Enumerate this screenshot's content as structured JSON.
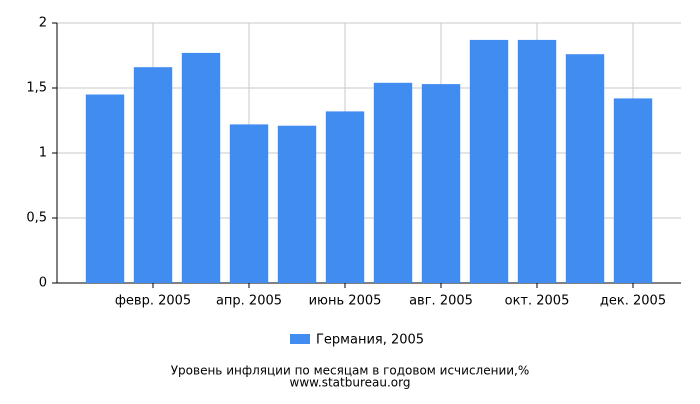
{
  "chart_data": {
    "type": "bar",
    "title": "Уровень инфляции по месяцам в годовом исчислении,%",
    "source": "www.statbureau.org",
    "categories": [
      null,
      "февр. 2005",
      null,
      "апр. 2005",
      null,
      "июнь 2005",
      null,
      "авг. 2005",
      null,
      "окт. 2005",
      null,
      "дек. 2005"
    ],
    "series": [
      {
        "name": "Германия, 2005",
        "color": "#418cf0",
        "values": [
          1.45,
          1.66,
          1.77,
          1.22,
          1.21,
          1.32,
          1.54,
          1.53,
          1.87,
          1.87,
          1.76,
          1.42
        ]
      }
    ],
    "ylim": [
      0,
      2
    ],
    "yticks": [
      0,
      {
        "value": 0.5,
        "label": "0,5"
      },
      1,
      {
        "value": 1.5,
        "label": "1,5"
      },
      2
    ],
    "grid": true
  }
}
